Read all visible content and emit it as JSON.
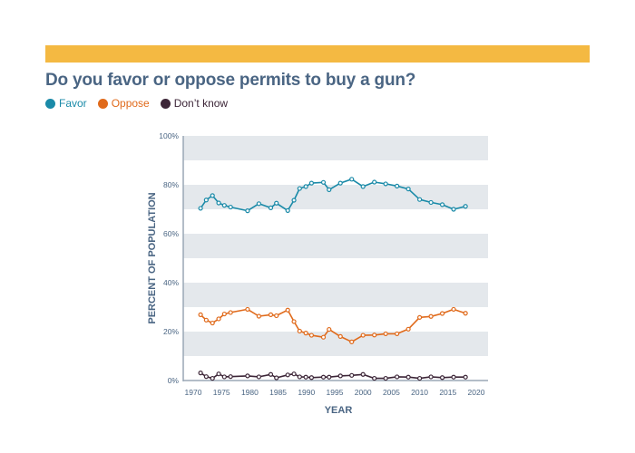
{
  "colors": {
    "accent_bar": "#f4b942",
    "title": "#4a6583",
    "band": "#e4e8ec",
    "axis": "#9aa7b5"
  },
  "chart_data": {
    "type": "line",
    "title": "Do you favor or oppose permits to buy a gun?",
    "xlabel": "YEAR",
    "ylabel": "PERCENT OF POPULATION",
    "xlim": [
      1970,
      2020
    ],
    "ylim": [
      0,
      100
    ],
    "x_ticks": [
      1970,
      1975,
      1980,
      1985,
      1990,
      1995,
      2000,
      2005,
      2010,
      2015,
      2020
    ],
    "y_ticks": [
      0,
      20,
      40,
      60,
      80,
      100
    ],
    "y_tick_labels": [
      "0%",
      "20%",
      "40%",
      "60%",
      "80%",
      "100%"
    ],
    "grid": "alternating horizontal bands",
    "legend_position": "top-left",
    "x": [
      1971.3,
      1972.3,
      1973.4,
      1974.5,
      1975.5,
      1976.6,
      1979.6,
      1981.6,
      1983.7,
      1984.7,
      1986.7,
      1987.8,
      1988.8,
      1989.9,
      1990.9,
      1993,
      1994,
      1996,
      1998,
      2000,
      2002,
      2004,
      2006,
      2008,
      2010,
      2012,
      2014,
      2016,
      2018.1
    ],
    "series": [
      {
        "name": "Favor",
        "color": "#1a8aa8",
        "values": [
          70.4,
          73.8,
          75.6,
          72.6,
          71.6,
          70.9,
          69.4,
          72.3,
          70.6,
          72.5,
          69.5,
          73.7,
          78.5,
          79.3,
          80.7,
          81.0,
          78.0,
          80.7,
          82.3,
          79.3,
          81.1,
          80.4,
          79.5,
          78.3,
          74.0,
          72.8,
          71.9,
          70.0,
          71.2
        ]
      },
      {
        "name": "Oppose",
        "color": "#e06a1b",
        "values": [
          26.9,
          24.7,
          23.5,
          25.2,
          27.2,
          27.8,
          29.1,
          26.3,
          26.9,
          26.5,
          28.8,
          24.1,
          20.2,
          19.4,
          18.5,
          17.7,
          20.9,
          18.0,
          15.8,
          18.5,
          18.6,
          19.1,
          19.1,
          21.0,
          25.8,
          26.2,
          27.4,
          29.1,
          27.5
        ]
      },
      {
        "name": "Don’t know",
        "color": "#3d2638",
        "values": [
          3.1,
          1.6,
          0.9,
          2.7,
          1.5,
          1.6,
          1.9,
          1.5,
          2.5,
          1.1,
          2.3,
          2.7,
          1.5,
          1.4,
          1.2,
          1.4,
          1.4,
          1.9,
          2.1,
          2.5,
          0.9,
          0.9,
          1.5,
          1.4,
          0.9,
          1.5,
          1.2,
          1.4,
          1.4
        ]
      }
    ]
  }
}
